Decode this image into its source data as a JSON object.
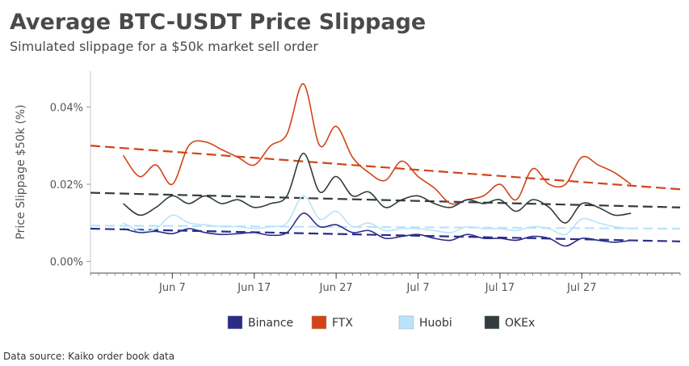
{
  "header": {
    "title": "Average BTC-USDT Price Slippage",
    "subtitle": "Simulated slippage for a $50k market sell order"
  },
  "footer": {
    "source": "Data source: Kaiko order book data"
  },
  "chart_data": {
    "type": "line",
    "title": "Average BTC-USDT Price Slippage",
    "subtitle": "Simulated slippage for a $50k market sell order",
    "xlabel": "",
    "ylabel": "Price Slippage $50k (%)",
    "ylim": [
      -0.003,
      0.0493
    ],
    "xlim": [
      "2021-05-28",
      "2021-08-08"
    ],
    "yticks": [
      0.0,
      0.02,
      0.04
    ],
    "ytick_labels": [
      "0.00%",
      "0.02%",
      "0.04%"
    ],
    "xticks": [
      "2021-06-07",
      "2021-06-17",
      "2021-06-27",
      "2021-07-07",
      "2021-07-17",
      "2021-07-27"
    ],
    "xtick_labels": [
      "Jun 7",
      "Jun 17",
      "Jun 27",
      "Jul 7",
      "Jul 17",
      "Jul 27"
    ],
    "grid": false,
    "legend_position": "bottom",
    "x": [
      "2021-06-01",
      "2021-06-03",
      "2021-06-05",
      "2021-06-07",
      "2021-06-09",
      "2021-06-11",
      "2021-06-13",
      "2021-06-15",
      "2021-06-17",
      "2021-06-19",
      "2021-06-21",
      "2021-06-23",
      "2021-06-25",
      "2021-06-27",
      "2021-06-29",
      "2021-07-01",
      "2021-07-03",
      "2021-07-05",
      "2021-07-07",
      "2021-07-09",
      "2021-07-11",
      "2021-07-13",
      "2021-07-15",
      "2021-07-17",
      "2021-07-19",
      "2021-07-21",
      "2021-07-23",
      "2021-07-25",
      "2021-07-27",
      "2021-07-29",
      "2021-07-31",
      "2021-08-02"
    ],
    "series": [
      {
        "name": "Binance",
        "color": "#2a2c88",
        "values": [
          0.0085,
          0.0075,
          0.0078,
          0.0072,
          0.0085,
          0.0075,
          0.007,
          0.0072,
          0.0075,
          0.0068,
          0.0075,
          0.0125,
          0.009,
          0.0095,
          0.0075,
          0.008,
          0.006,
          0.0065,
          0.007,
          0.006,
          0.0055,
          0.007,
          0.006,
          0.006,
          0.0055,
          0.0065,
          0.006,
          0.004,
          0.006,
          0.0055,
          0.005,
          0.0055
        ],
        "trend": [
          0.0085,
          0.0052
        ]
      },
      {
        "name": "FTX",
        "color": "#d24417",
        "values": [
          0.0275,
          0.022,
          0.025,
          0.02,
          0.03,
          0.031,
          0.029,
          0.027,
          0.025,
          0.03,
          0.033,
          0.046,
          0.03,
          0.035,
          0.027,
          0.023,
          0.021,
          0.026,
          0.022,
          0.019,
          0.015,
          0.016,
          0.017,
          0.02,
          0.016,
          0.024,
          0.02,
          0.02,
          0.027,
          0.025,
          0.023,
          0.02
        ],
        "trend": [
          0.03,
          0.0187
        ]
      },
      {
        "name": "Huobi",
        "color": "#b9e3f9",
        "values": [
          0.01,
          0.008,
          0.0085,
          0.012,
          0.01,
          0.0095,
          0.009,
          0.009,
          0.0085,
          0.009,
          0.01,
          0.017,
          0.011,
          0.013,
          0.009,
          0.01,
          0.008,
          0.0085,
          0.0085,
          0.008,
          0.0075,
          0.009,
          0.0085,
          0.0085,
          0.008,
          0.009,
          0.0085,
          0.007,
          0.011,
          0.01,
          0.009,
          0.0085
        ],
        "trend": [
          0.0093,
          0.0085
        ]
      },
      {
        "name": "OKEx",
        "color": "#333c3f",
        "values": [
          0.015,
          0.012,
          0.014,
          0.017,
          0.015,
          0.017,
          0.015,
          0.016,
          0.014,
          0.015,
          0.017,
          0.028,
          0.018,
          0.022,
          0.017,
          0.018,
          0.014,
          0.016,
          0.017,
          0.015,
          0.014,
          0.016,
          0.015,
          0.016,
          0.013,
          0.016,
          0.014,
          0.01,
          0.015,
          0.014,
          0.012,
          0.0125
        ],
        "trend": [
          0.0178,
          0.014
        ]
      }
    ]
  }
}
